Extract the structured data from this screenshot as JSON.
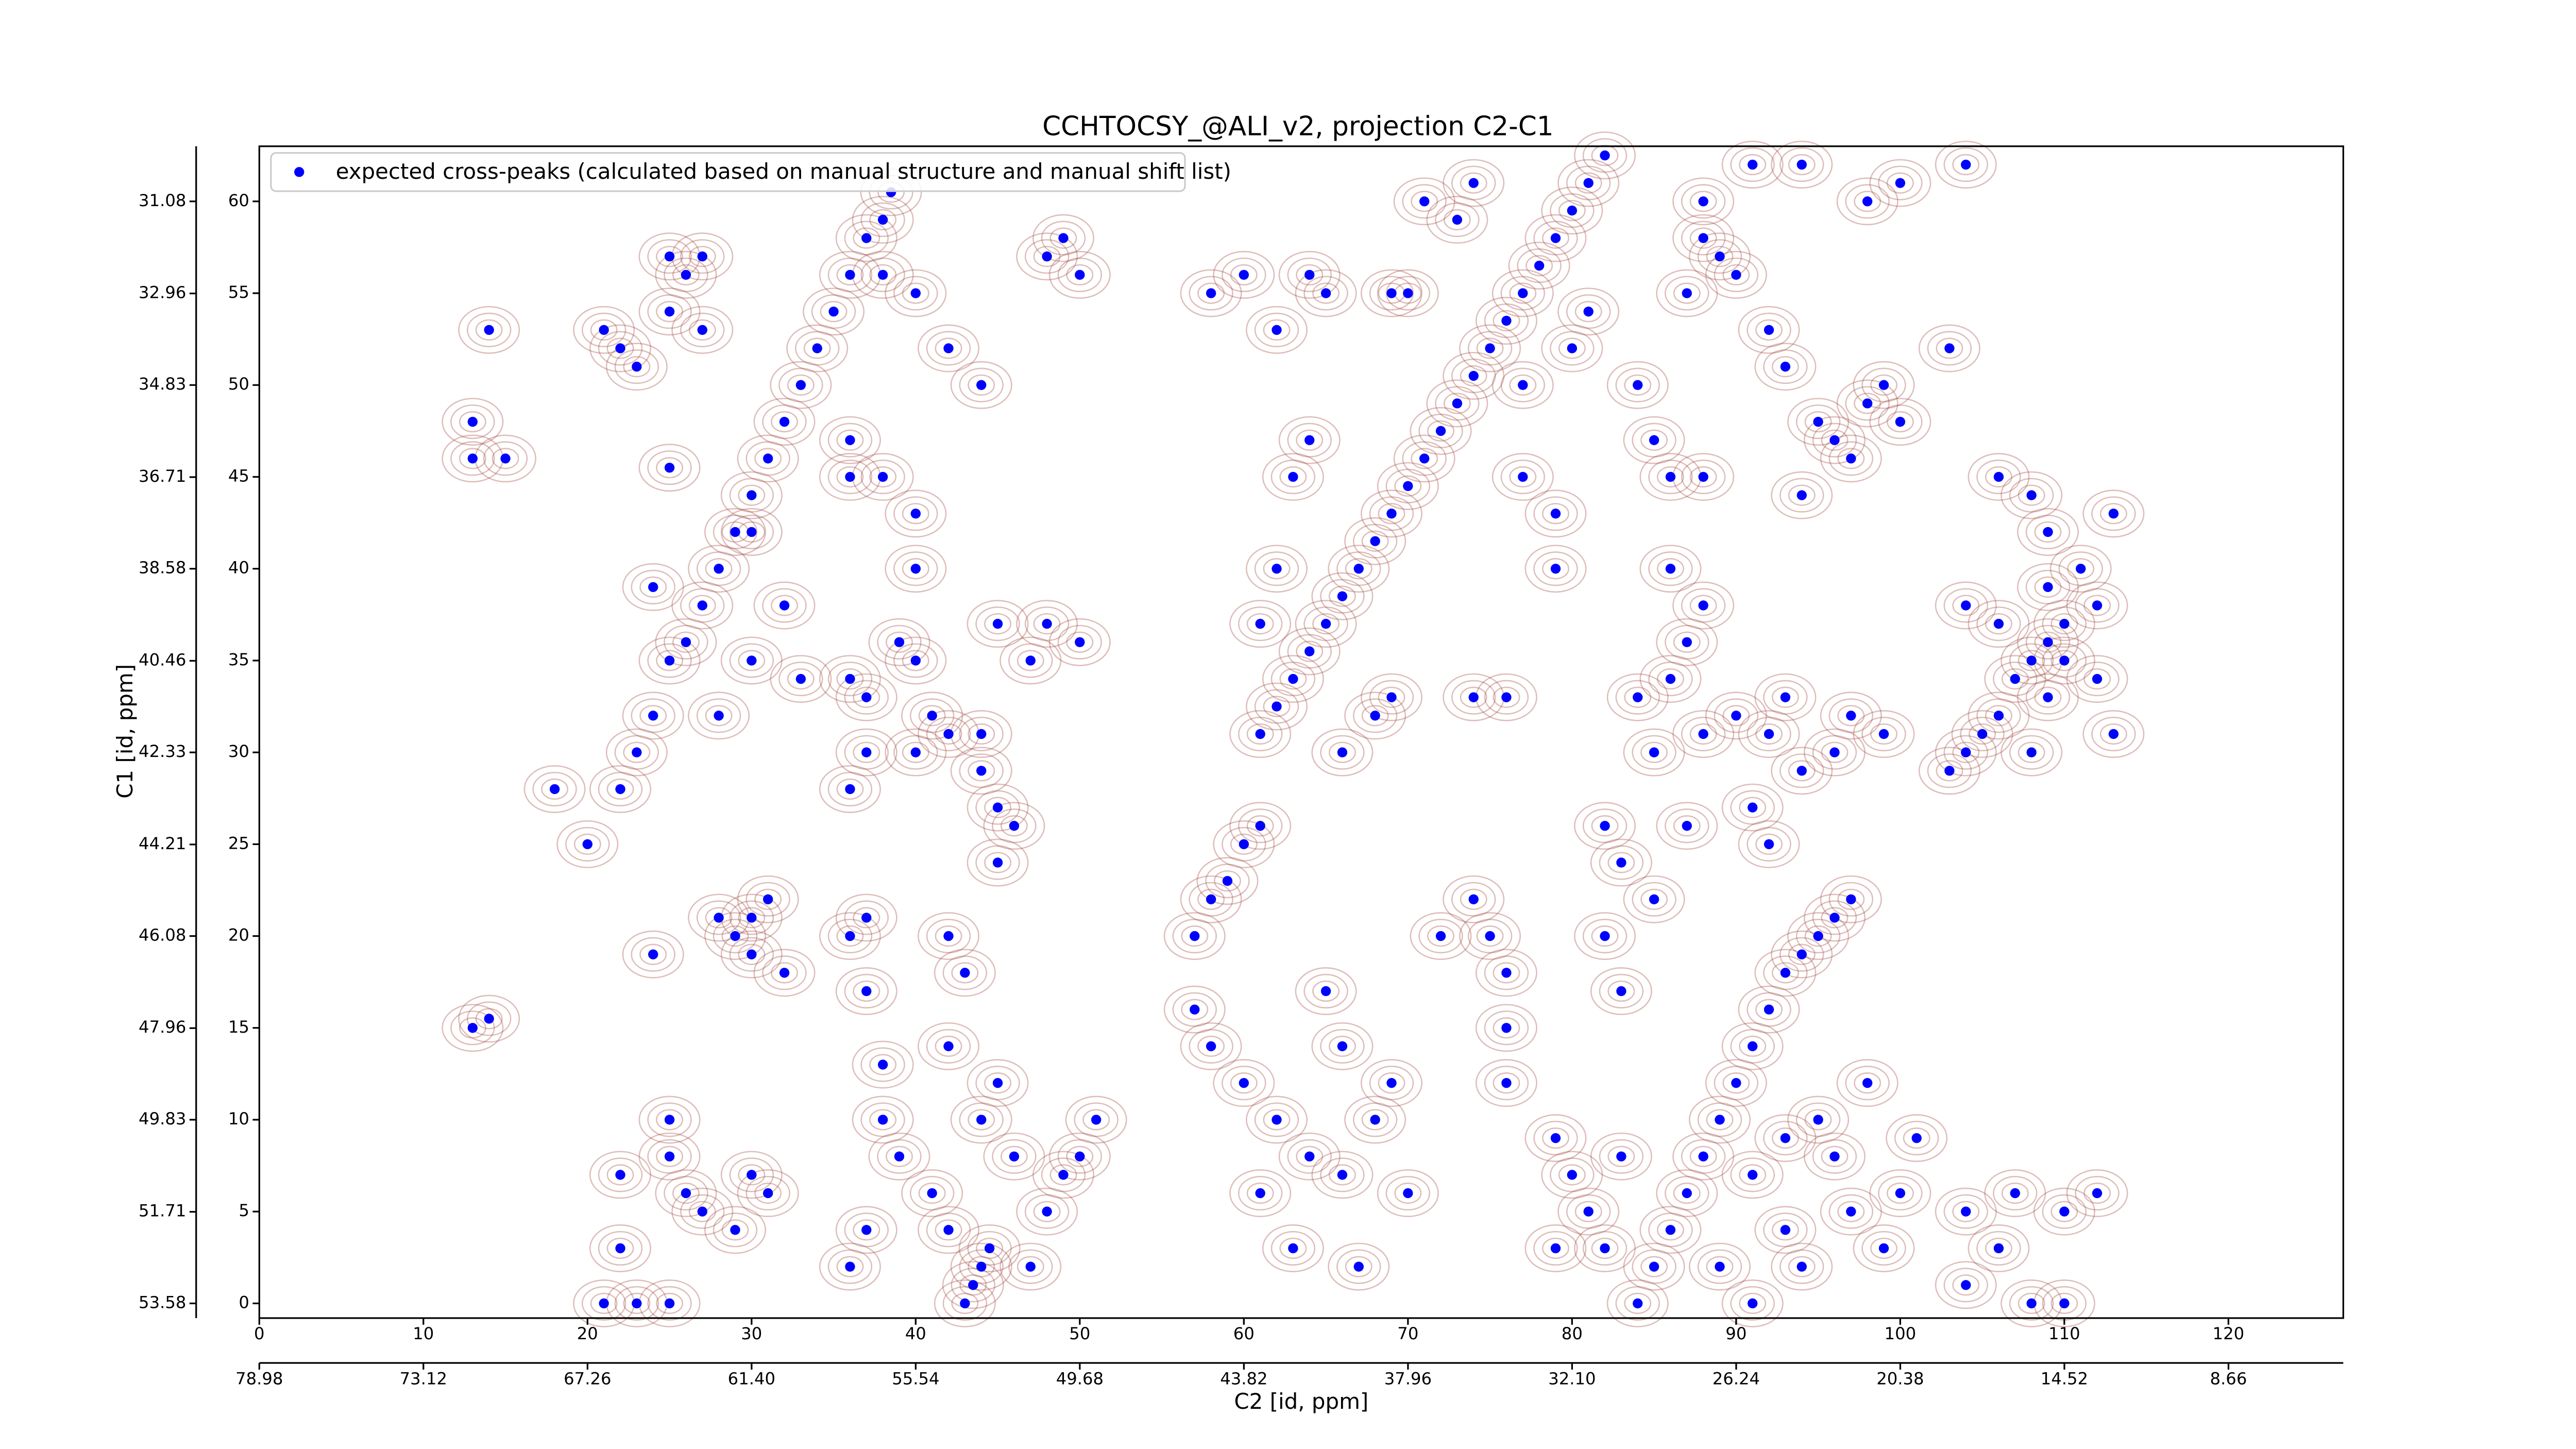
{
  "chart_data": {
    "type": "scatter",
    "title": "CCHTOCSY_@ALI_v2, projection C2-C1",
    "xlabel": "C2 [id, ppm]",
    "ylabel": "C1 [id, ppm]",
    "xlim": [
      0,
      127
    ],
    "xticks": [
      0,
      10,
      20,
      30,
      40,
      50,
      60,
      70,
      80,
      90,
      100,
      110,
      120
    ],
    "ylim": [
      -0.8,
      63
    ],
    "yticks": [
      0,
      5,
      10,
      15,
      20,
      25,
      30,
      35,
      40,
      45,
      50,
      55,
      60
    ],
    "x2lim": [
      78.98,
      4.56
    ],
    "x2ticks": [
      78.98,
      73.12,
      67.26,
      {
        "value": 61.4,
        "label": "61.40"
      },
      55.54,
      49.68,
      43.82,
      37.96,
      {
        "value": 32.1,
        "label": "32.10"
      },
      26.24,
      20.38,
      14.52,
      8.66
    ],
    "y2lim": [
      53.88,
      29.955
    ],
    "y2ticks": [
      31.08,
      32.96,
      34.83,
      36.71,
      38.58,
      40.46,
      42.33,
      44.21,
      46.08,
      47.96,
      49.83,
      51.71,
      53.58
    ],
    "legend": "upper left",
    "series": [
      {
        "name": "expected cross-peaks (calculated based on manual structure and manual shift list)",
        "color": "#0000ff",
        "x": [
          22,
          23,
          24,
          25,
          26,
          27,
          28,
          29,
          30,
          31,
          32,
          33,
          34,
          35,
          36,
          37,
          38,
          38.5,
          61,
          62,
          63,
          64,
          65,
          66,
          67,
          68,
          69,
          70,
          71,
          72,
          73,
          74,
          75,
          76,
          77,
          78,
          79,
          80,
          81,
          82,
          84,
          85,
          86,
          87,
          88,
          89,
          90,
          91,
          92,
          93,
          94,
          95,
          96,
          97,
          43,
          43.5,
          44,
          44.5,
          57,
          58,
          59,
          60,
          61,
          103,
          104,
          105,
          106,
          107,
          108,
          109,
          13,
          13,
          15,
          14,
          25,
          24,
          21,
          22,
          23,
          25,
          25,
          26,
          27,
          27,
          30,
          32,
          30,
          28,
          33,
          36,
          37,
          36,
          37,
          40,
          40,
          41,
          42,
          44,
          44,
          45,
          46,
          45,
          39,
          40,
          38,
          36,
          36,
          40,
          38,
          40,
          42,
          44,
          48,
          49,
          50,
          48,
          50,
          45,
          47,
          28,
          29,
          30,
          31,
          30,
          32,
          36,
          37,
          37,
          42,
          43,
          42,
          38,
          38,
          39,
          41,
          42,
          36,
          37,
          44,
          45,
          46,
          48,
          49,
          50,
          51,
          47,
          30,
          31,
          25,
          25,
          26,
          22,
          22,
          21,
          23,
          25,
          27,
          29,
          18,
          20,
          24,
          13,
          14,
          57,
          58,
          60,
          62,
          64,
          66,
          68,
          61,
          63,
          67,
          70,
          72,
          74,
          75,
          76,
          76,
          76,
          65,
          66,
          69,
          61,
          62,
          63,
          64,
          66,
          68,
          69,
          74,
          76,
          77,
          77,
          79,
          79,
          80,
          81,
          73,
          74,
          71,
          70,
          69,
          60,
          58,
          62,
          64,
          65,
          84,
          85,
          86,
          88,
          86,
          88,
          87,
          86,
          84,
          85,
          88,
          90,
          92,
          93,
          94,
          96,
          97,
          99,
          91,
          92,
          87,
          82,
          83,
          85,
          82,
          83,
          87,
          88,
          89,
          90,
          92,
          93,
          95,
          96,
          94,
          97,
          98,
          99,
          100,
          103,
          88,
          91,
          94,
          98,
          100,
          104,
          106,
          108,
          109,
          111,
          112,
          113,
          110,
          106,
          109,
          110,
          112,
          104,
          108,
          109,
          113,
          95,
          96,
          97,
          99,
          100,
          101,
          98,
          93,
          91,
          93,
          94,
          91,
          89,
          79,
          80,
          81,
          82,
          79,
          83,
          104,
          104,
          106,
          107,
          110,
          110,
          112,
          108
        ],
        "values": [
          28,
          30,
          32,
          35,
          36,
          38,
          40,
          42,
          44,
          46,
          48,
          50,
          52,
          54,
          56,
          58,
          59,
          60.5,
          31,
          32.5,
          34,
          35.5,
          37,
          38.5,
          40,
          41.5,
          43,
          44.5,
          46,
          47.5,
          49,
          50.5,
          52,
          53.5,
          55,
          56.5,
          58,
          59.5,
          61,
          62.5,
          0,
          2,
          4,
          6,
          8,
          10,
          12,
          14,
          16,
          18,
          19,
          20,
          21,
          22,
          0,
          1,
          2,
          3,
          20,
          22,
          23,
          25,
          26,
          29,
          30,
          31,
          32,
          34,
          35,
          36,
          48,
          46,
          46,
          53,
          45.5,
          39,
          53,
          52,
          51,
          54,
          57,
          56,
          53,
          57,
          42,
          38,
          35,
          32,
          34,
          34,
          33,
          28,
          30,
          30,
          35,
          32,
          31,
          31,
          29,
          27,
          26,
          24,
          36,
          40,
          45,
          45,
          47,
          43,
          56,
          55,
          52,
          50,
          57,
          58,
          56,
          37,
          36,
          37,
          35,
          21,
          20,
          21,
          22,
          19,
          18,
          20,
          21,
          17,
          20,
          18,
          14,
          13,
          10,
          8,
          6,
          4,
          2,
          4,
          10,
          12,
          8,
          5,
          7,
          8,
          10,
          2,
          7,
          6,
          8,
          10,
          6,
          7,
          3,
          0,
          0,
          0,
          5,
          4,
          28,
          25,
          19,
          15,
          15.5,
          16,
          14,
          12,
          10,
          8,
          7,
          10,
          6,
          3,
          2,
          6,
          20,
          22,
          20,
          18,
          15,
          12,
          17,
          14,
          12,
          37,
          40,
          45,
          47,
          30,
          32,
          33,
          33,
          33,
          45,
          50,
          40,
          43,
          52,
          54,
          59,
          61,
          60,
          55,
          55,
          56,
          55,
          53,
          56,
          55,
          50,
          47,
          45,
          45,
          40,
          38,
          36,
          34,
          33,
          30,
          31,
          32,
          31,
          33,
          29,
          30,
          32,
          31,
          27,
          25,
          26,
          26,
          24,
          22,
          20,
          17,
          55,
          58,
          57,
          56,
          53,
          51,
          48,
          47,
          44,
          46,
          49,
          50,
          48,
          52,
          60,
          62,
          62,
          60,
          61,
          62,
          45,
          44,
          42,
          40,
          38,
          43,
          37,
          37,
          39,
          35,
          34,
          38,
          30,
          33,
          31,
          10,
          8,
          5,
          3,
          6,
          9,
          12,
          9,
          7,
          4,
          2,
          0,
          2,
          9,
          7,
          5,
          3,
          3,
          8,
          5,
          1,
          3,
          6,
          5,
          0,
          6,
          0
        ]
      }
    ]
  }
}
